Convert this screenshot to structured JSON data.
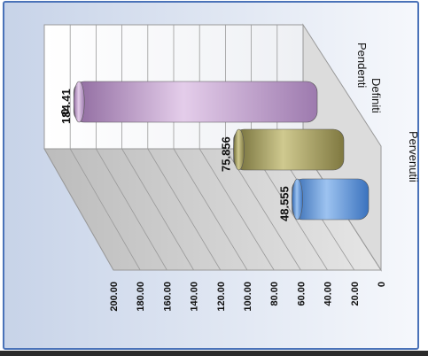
{
  "chart_data": {
    "type": "bar",
    "orientation": "horizontal-3d-cylinder",
    "categories": [
      "Pendenti",
      "Definiti",
      "Pervenutii"
    ],
    "series": [
      {
        "values": [
          184.41,
          75.856,
          48.555
        ]
      }
    ],
    "data_labels": [
      "184.41",
      "75.856",
      "48.555"
    ],
    "extra_label": "0",
    "tick_labels": [
      "0",
      "20.00",
      "40.00",
      "60.00",
      "80.00",
      "100.00",
      "120.00",
      "140.00",
      "160.00",
      "180.00",
      "200.00"
    ],
    "ylim": [
      0,
      200
    ],
    "grid": true,
    "legend": "none",
    "colors": {
      "bars": [
        "#c9a6d6",
        "#a8a16a",
        "#5b95d6"
      ],
      "walls": "#d4d4d4",
      "frame": "#4a72b8"
    }
  }
}
